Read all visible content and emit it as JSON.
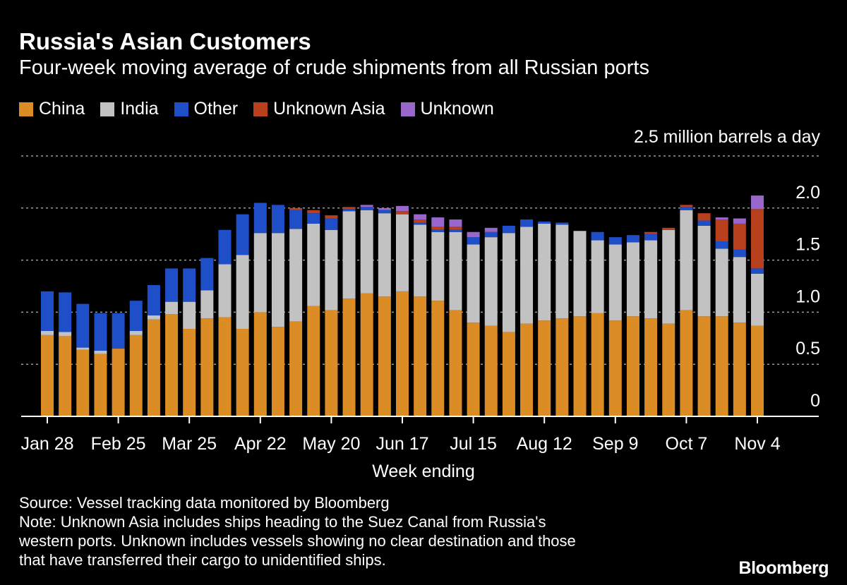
{
  "chart_data": {
    "type": "bar",
    "stacked": true,
    "title": "Russia's Asian Customers",
    "subtitle": "Four-week moving average of crude shipments from all Russian ports",
    "unit_label": "2.5 million barrels a day",
    "xlabel": "Week ending",
    "ylabel": "",
    "ylim": [
      0,
      2.5
    ],
    "y_ticks": [
      "0",
      "0.5",
      "1.0",
      "1.5",
      "2.0"
    ],
    "y_tick_values": [
      0,
      0.5,
      1.0,
      1.5,
      2.0
    ],
    "grid": true,
    "legend_position": "top-left",
    "x_tick_labels": [
      "Jan 28",
      "Feb 25",
      "Mar 25",
      "Apr 22",
      "May 20",
      "Jun 17",
      "Jul 15",
      "Aug 12",
      "Sep 9",
      "Oct 7",
      "Nov 4"
    ],
    "x_tick_indices": [
      0,
      4,
      8,
      12,
      16,
      20,
      24,
      28,
      32,
      36,
      40
    ],
    "categories": [
      "Jan 28",
      "Feb 4",
      "Feb 11",
      "Feb 18",
      "Feb 25",
      "Mar 4",
      "Mar 11",
      "Mar 18",
      "Mar 25",
      "Apr 1",
      "Apr 8",
      "Apr 15",
      "Apr 22",
      "Apr 29",
      "May 6",
      "May 13",
      "May 20",
      "May 27",
      "Jun 3",
      "Jun 10",
      "Jun 17",
      "Jun 24",
      "Jul 1",
      "Jul 8",
      "Jul 15",
      "Jul 22",
      "Jul 29",
      "Aug 5",
      "Aug 12",
      "Aug 19",
      "Aug 26",
      "Sep 2",
      "Sep 9",
      "Sep 16",
      "Sep 23",
      "Sep 30",
      "Oct 7",
      "Oct 14",
      "Oct 21",
      "Oct 28",
      "Nov 4"
    ],
    "series": [
      {
        "name": "China",
        "color": "#dc8c24",
        "values": [
          0.78,
          0.77,
          0.64,
          0.6,
          0.65,
          0.78,
          0.93,
          0.98,
          0.84,
          0.94,
          0.95,
          0.84,
          1.0,
          0.86,
          0.91,
          1.06,
          1.02,
          1.13,
          1.18,
          1.15,
          1.2,
          1.15,
          1.11,
          1.02,
          0.9,
          0.87,
          0.81,
          0.89,
          0.92,
          0.94,
          0.96,
          0.99,
          0.92,
          0.96,
          0.94,
          0.89,
          1.02,
          0.96,
          0.96,
          0.9,
          0.87
        ]
      },
      {
        "name": "India",
        "color": "#c2c2c2",
        "values": [
          0.04,
          0.04,
          0.02,
          0.03,
          0.0,
          0.04,
          0.04,
          0.12,
          0.26,
          0.27,
          0.51,
          0.71,
          0.76,
          0.9,
          0.89,
          0.79,
          0.77,
          0.84,
          0.8,
          0.8,
          0.74,
          0.69,
          0.66,
          0.75,
          0.75,
          0.85,
          0.95,
          0.93,
          0.93,
          0.9,
          0.82,
          0.7,
          0.73,
          0.71,
          0.75,
          0.9,
          0.96,
          0.87,
          0.65,
          0.63,
          0.5
        ]
      },
      {
        "name": "Other",
        "color": "#1f4fc8",
        "values": [
          0.38,
          0.38,
          0.42,
          0.36,
          0.34,
          0.29,
          0.29,
          0.32,
          0.32,
          0.31,
          0.33,
          0.39,
          0.29,
          0.27,
          0.18,
          0.1,
          0.11,
          0.02,
          0.03,
          0.03,
          0.0,
          0.02,
          0.02,
          0.02,
          0.07,
          0.05,
          0.07,
          0.07,
          0.02,
          0.02,
          0.0,
          0.08,
          0.07,
          0.07,
          0.06,
          0.0,
          0.03,
          0.05,
          0.07,
          0.07,
          0.05
        ]
      },
      {
        "name": "Unknown Asia",
        "color": "#b8401c",
        "values": [
          0,
          0,
          0,
          0,
          0,
          0,
          0,
          0,
          0,
          0,
          0,
          0,
          0,
          0,
          0.02,
          0.03,
          0.03,
          0.02,
          0,
          0,
          0.03,
          0.03,
          0.03,
          0.03,
          0,
          0,
          0,
          0,
          0,
          0,
          0,
          0,
          0,
          0,
          0.02,
          0.02,
          0.02,
          0.07,
          0.21,
          0.25,
          0.57
        ]
      },
      {
        "name": "Unknown",
        "color": "#9966cc",
        "values": [
          0,
          0,
          0,
          0,
          0,
          0,
          0,
          0,
          0,
          0,
          0,
          0,
          0,
          0,
          0,
          0,
          0,
          0,
          0.02,
          0.02,
          0.05,
          0.05,
          0.09,
          0.07,
          0.05,
          0.04,
          0,
          0,
          0,
          0,
          0,
          0,
          0,
          0,
          0,
          0,
          0,
          0,
          0.02,
          0.05,
          0.13
        ]
      }
    ]
  },
  "source": "Source: Vessel tracking data monitored by Bloomberg",
  "note_lines": [
    "Note: Unknown Asia includes ships heading to the Suez Canal from Russia's",
    "western ports. Unknown includes vessels showing no clear destination and those",
    "that have transferred their cargo to unidentified ships."
  ],
  "logo": "Bloomberg"
}
